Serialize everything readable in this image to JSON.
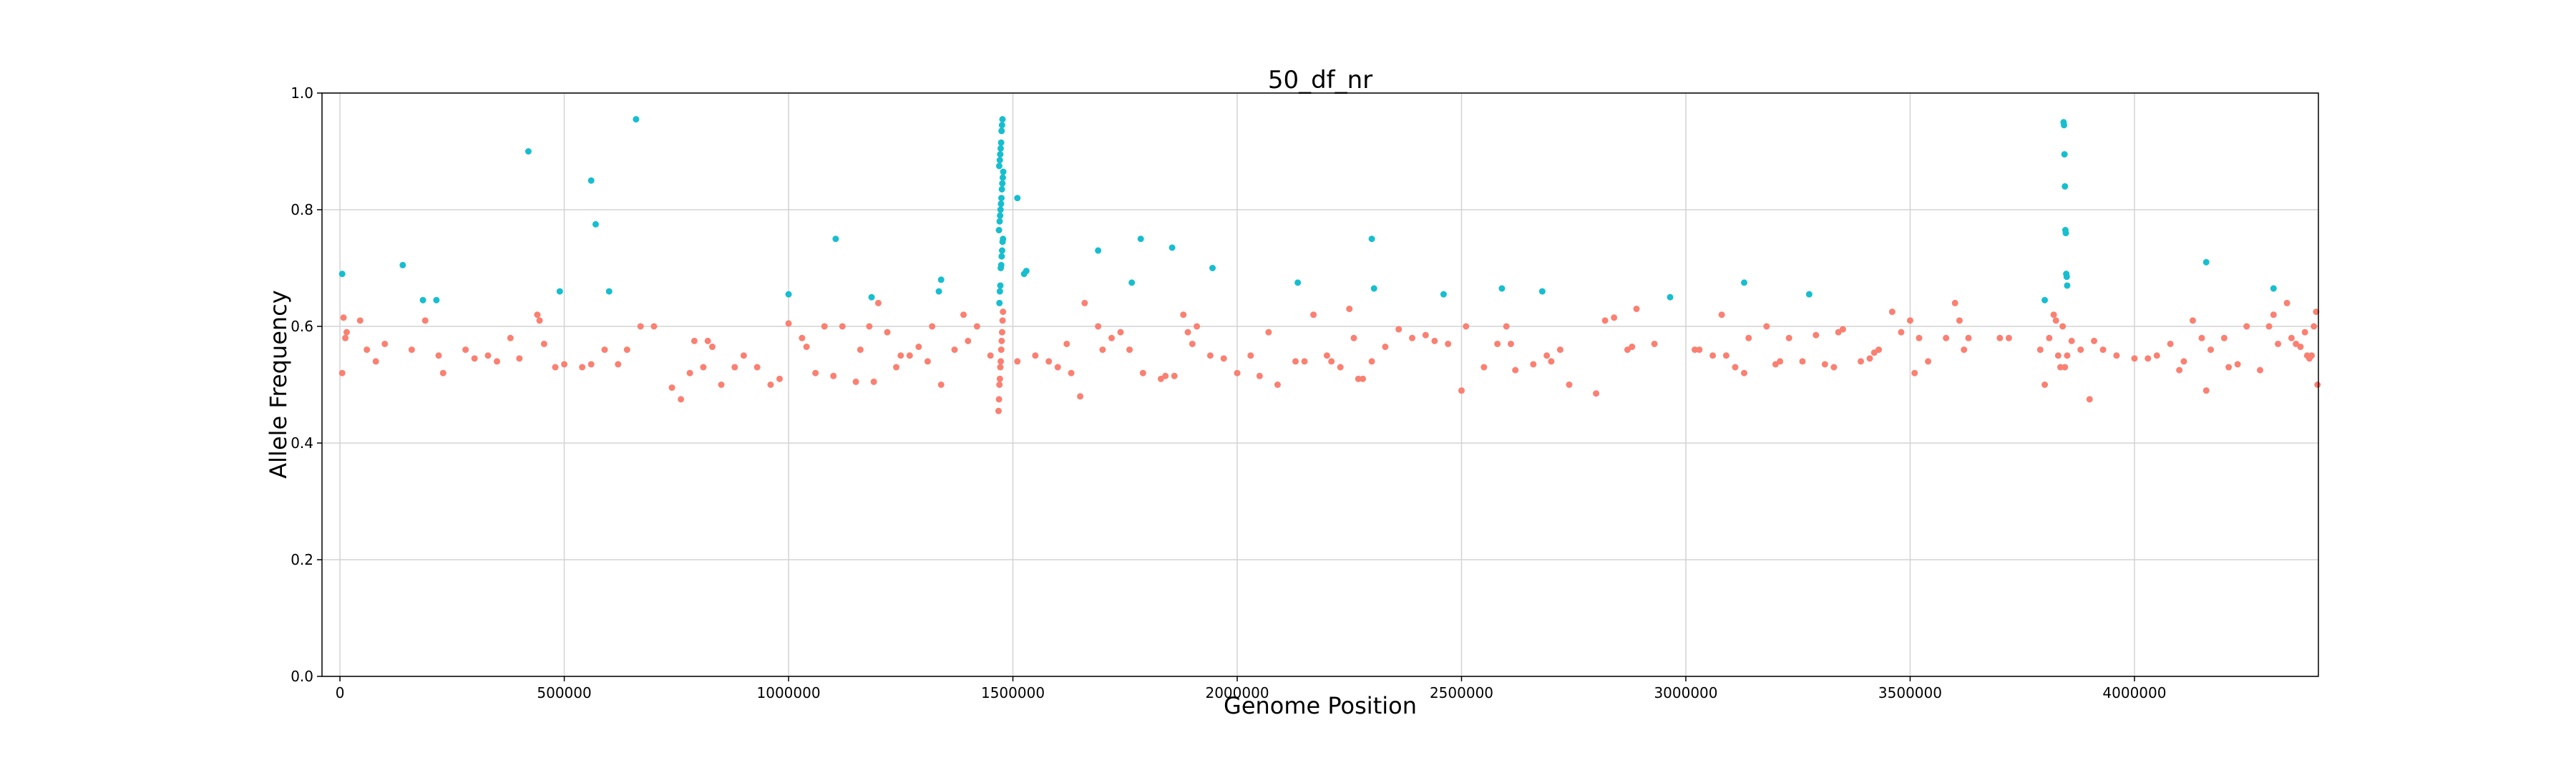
{
  "chart_data": {
    "type": "scatter",
    "title": "50_df_nr",
    "xlabel": "Genome Position",
    "ylabel": "Allele Frequency",
    "xlim": [
      -40000,
      4410000
    ],
    "ylim": [
      0.0,
      1.0
    ],
    "xticks": [
      0,
      500000,
      1000000,
      1500000,
      2000000,
      2500000,
      3000000,
      3500000,
      4000000
    ],
    "yticks": [
      0.0,
      0.2,
      0.4,
      0.6,
      0.8,
      1.0
    ],
    "grid": true,
    "legend": "none",
    "series": [
      {
        "color": "#fa8072",
        "points": [
          [
            5000,
            0.52
          ],
          [
            8000,
            0.615
          ],
          [
            12000,
            0.58
          ],
          [
            15000,
            0.59
          ],
          [
            45000,
            0.61
          ],
          [
            60000,
            0.56
          ],
          [
            80000,
            0.54
          ],
          [
            100000,
            0.57
          ],
          [
            160000,
            0.56
          ],
          [
            190000,
            0.61
          ],
          [
            220000,
            0.55
          ],
          [
            230000,
            0.52
          ],
          [
            280000,
            0.56
          ],
          [
            300000,
            0.545
          ],
          [
            330000,
            0.55
          ],
          [
            350000,
            0.54
          ],
          [
            380000,
            0.58
          ],
          [
            400000,
            0.545
          ],
          [
            440000,
            0.62
          ],
          [
            445000,
            0.61
          ],
          [
            455000,
            0.57
          ],
          [
            480000,
            0.53
          ],
          [
            500000,
            0.535
          ],
          [
            540000,
            0.53
          ],
          [
            560000,
            0.535
          ],
          [
            590000,
            0.56
          ],
          [
            620000,
            0.535
          ],
          [
            640000,
            0.56
          ],
          [
            670000,
            0.6
          ],
          [
            700000,
            0.6
          ],
          [
            740000,
            0.495
          ],
          [
            760000,
            0.475
          ],
          [
            780000,
            0.52
          ],
          [
            790000,
            0.575
          ],
          [
            810000,
            0.53
          ],
          [
            820000,
            0.575
          ],
          [
            830000,
            0.565
          ],
          [
            850000,
            0.5
          ],
          [
            880000,
            0.53
          ],
          [
            900000,
            0.55
          ],
          [
            930000,
            0.53
          ],
          [
            960000,
            0.5
          ],
          [
            980000,
            0.51
          ],
          [
            1000000,
            0.605
          ],
          [
            1030000,
            0.58
          ],
          [
            1040000,
            0.565
          ],
          [
            1060000,
            0.52
          ],
          [
            1080000,
            0.6
          ],
          [
            1100000,
            0.515
          ],
          [
            1120000,
            0.6
          ],
          [
            1150000,
            0.505
          ],
          [
            1160000,
            0.56
          ],
          [
            1180000,
            0.6
          ],
          [
            1190000,
            0.505
          ],
          [
            1200000,
            0.64
          ],
          [
            1220000,
            0.59
          ],
          [
            1240000,
            0.53
          ],
          [
            1250000,
            0.55
          ],
          [
            1270000,
            0.55
          ],
          [
            1290000,
            0.565
          ],
          [
            1310000,
            0.54
          ],
          [
            1320000,
            0.6
          ],
          [
            1340000,
            0.5
          ],
          [
            1370000,
            0.56
          ],
          [
            1390000,
            0.62
          ],
          [
            1400000,
            0.575
          ],
          [
            1420000,
            0.6
          ],
          [
            1450000,
            0.55
          ],
          [
            1468000,
            0.455
          ],
          [
            1469000,
            0.475
          ],
          [
            1470000,
            0.5
          ],
          [
            1471000,
            0.51
          ],
          [
            1472000,
            0.53
          ],
          [
            1473000,
            0.54
          ],
          [
            1474000,
            0.56
          ],
          [
            1475000,
            0.575
          ],
          [
            1476000,
            0.59
          ],
          [
            1477000,
            0.61
          ],
          [
            1478000,
            0.625
          ],
          [
            1510000,
            0.54
          ],
          [
            1550000,
            0.55
          ],
          [
            1580000,
            0.54
          ],
          [
            1600000,
            0.53
          ],
          [
            1620000,
            0.57
          ],
          [
            1630000,
            0.52
          ],
          [
            1650000,
            0.48
          ],
          [
            1660000,
            0.64
          ],
          [
            1690000,
            0.6
          ],
          [
            1700000,
            0.56
          ],
          [
            1720000,
            0.58
          ],
          [
            1740000,
            0.59
          ],
          [
            1760000,
            0.56
          ],
          [
            1790000,
            0.52
          ],
          [
            1830000,
            0.51
          ],
          [
            1840000,
            0.515
          ],
          [
            1860000,
            0.515
          ],
          [
            1880000,
            0.62
          ],
          [
            1890000,
            0.59
          ],
          [
            1900000,
            0.57
          ],
          [
            1910000,
            0.6
          ],
          [
            1940000,
            0.55
          ],
          [
            1970000,
            0.545
          ],
          [
            2000000,
            0.52
          ],
          [
            2030000,
            0.55
          ],
          [
            2050000,
            0.515
          ],
          [
            2070000,
            0.59
          ],
          [
            2090000,
            0.5
          ],
          [
            2130000,
            0.54
          ],
          [
            2150000,
            0.54
          ],
          [
            2170000,
            0.62
          ],
          [
            2200000,
            0.55
          ],
          [
            2210000,
            0.54
          ],
          [
            2230000,
            0.53
          ],
          [
            2250000,
            0.63
          ],
          [
            2260000,
            0.58
          ],
          [
            2270000,
            0.51
          ],
          [
            2280000,
            0.51
          ],
          [
            2300000,
            0.54
          ],
          [
            2330000,
            0.565
          ],
          [
            2360000,
            0.595
          ],
          [
            2390000,
            0.58
          ],
          [
            2420000,
            0.585
          ],
          [
            2440000,
            0.575
          ],
          [
            2470000,
            0.57
          ],
          [
            2500000,
            0.49
          ],
          [
            2510000,
            0.6
          ],
          [
            2550000,
            0.53
          ],
          [
            2580000,
            0.57
          ],
          [
            2600000,
            0.6
          ],
          [
            2610000,
            0.57
          ],
          [
            2620000,
            0.525
          ],
          [
            2660000,
            0.535
          ],
          [
            2690000,
            0.55
          ],
          [
            2700000,
            0.54
          ],
          [
            2720000,
            0.56
          ],
          [
            2740000,
            0.5
          ],
          [
            2800000,
            0.485
          ],
          [
            2820000,
            0.61
          ],
          [
            2840000,
            0.615
          ],
          [
            2870000,
            0.56
          ],
          [
            2880000,
            0.565
          ],
          [
            2890000,
            0.63
          ],
          [
            2930000,
            0.57
          ],
          [
            3020000,
            0.56
          ],
          [
            3030000,
            0.56
          ],
          [
            3060000,
            0.55
          ],
          [
            3080000,
            0.62
          ],
          [
            3090000,
            0.55
          ],
          [
            3110000,
            0.53
          ],
          [
            3130000,
            0.52
          ],
          [
            3140000,
            0.58
          ],
          [
            3180000,
            0.6
          ],
          [
            3200000,
            0.535
          ],
          [
            3210000,
            0.54
          ],
          [
            3230000,
            0.58
          ],
          [
            3260000,
            0.54
          ],
          [
            3290000,
            0.585
          ],
          [
            3310000,
            0.535
          ],
          [
            3330000,
            0.53
          ],
          [
            3340000,
            0.59
          ],
          [
            3350000,
            0.595
          ],
          [
            3390000,
            0.54
          ],
          [
            3410000,
            0.545
          ],
          [
            3420000,
            0.555
          ],
          [
            3430000,
            0.56
          ],
          [
            3460000,
            0.625
          ],
          [
            3480000,
            0.59
          ],
          [
            3500000,
            0.61
          ],
          [
            3510000,
            0.52
          ],
          [
            3520000,
            0.58
          ],
          [
            3540000,
            0.54
          ],
          [
            3580000,
            0.58
          ],
          [
            3600000,
            0.64
          ],
          [
            3610000,
            0.61
          ],
          [
            3620000,
            0.56
          ],
          [
            3630000,
            0.58
          ],
          [
            3700000,
            0.58
          ],
          [
            3720000,
            0.58
          ],
          [
            3790000,
            0.56
          ],
          [
            3800000,
            0.5
          ],
          [
            3810000,
            0.58
          ],
          [
            3820000,
            0.62
          ],
          [
            3825000,
            0.61
          ],
          [
            3830000,
            0.55
          ],
          [
            3835000,
            0.53
          ],
          [
            3840000,
            0.6
          ],
          [
            3845000,
            0.53
          ],
          [
            3850000,
            0.55
          ],
          [
            3860000,
            0.575
          ],
          [
            3880000,
            0.56
          ],
          [
            3900000,
            0.475
          ],
          [
            3910000,
            0.575
          ],
          [
            3930000,
            0.56
          ],
          [
            3960000,
            0.55
          ],
          [
            4000000,
            0.545
          ],
          [
            4030000,
            0.545
          ],
          [
            4050000,
            0.55
          ],
          [
            4080000,
            0.57
          ],
          [
            4100000,
            0.525
          ],
          [
            4110000,
            0.54
          ],
          [
            4130000,
            0.61
          ],
          [
            4150000,
            0.58
          ],
          [
            4160000,
            0.49
          ],
          [
            4170000,
            0.56
          ],
          [
            4200000,
            0.58
          ],
          [
            4210000,
            0.53
          ],
          [
            4230000,
            0.535
          ],
          [
            4250000,
            0.6
          ],
          [
            4280000,
            0.525
          ],
          [
            4300000,
            0.6
          ],
          [
            4310000,
            0.62
          ],
          [
            4320000,
            0.57
          ],
          [
            4340000,
            0.64
          ],
          [
            4350000,
            0.58
          ],
          [
            4360000,
            0.57
          ],
          [
            4370000,
            0.565
          ],
          [
            4380000,
            0.59
          ],
          [
            4385000,
            0.55
          ],
          [
            4390000,
            0.545
          ],
          [
            4395000,
            0.55
          ],
          [
            4400000,
            0.6
          ],
          [
            4405000,
            0.625
          ],
          [
            4408000,
            0.5
          ]
        ]
      },
      {
        "color": "#17becf",
        "points": [
          [
            5000,
            0.69
          ],
          [
            140000,
            0.705
          ],
          [
            185000,
            0.645
          ],
          [
            215000,
            0.645
          ],
          [
            420000,
            0.9
          ],
          [
            490000,
            0.66
          ],
          [
            560000,
            0.85
          ],
          [
            570000,
            0.775
          ],
          [
            600000,
            0.66
          ],
          [
            660000,
            0.955
          ],
          [
            1000000,
            0.655
          ],
          [
            1105000,
            0.75
          ],
          [
            1185000,
            0.65
          ],
          [
            1335000,
            0.66
          ],
          [
            1340000,
            0.68
          ],
          [
            1470000,
            0.64
          ],
          [
            1471000,
            0.66
          ],
          [
            1472000,
            0.67
          ],
          [
            1473000,
            0.7
          ],
          [
            1474000,
            0.705
          ],
          [
            1475000,
            0.72
          ],
          [
            1476000,
            0.73
          ],
          [
            1477000,
            0.745
          ],
          [
            1478000,
            0.75
          ],
          [
            1469000,
            0.765
          ],
          [
            1470500,
            0.78
          ],
          [
            1471500,
            0.79
          ],
          [
            1472500,
            0.8
          ],
          [
            1473500,
            0.81
          ],
          [
            1474500,
            0.82
          ],
          [
            1475500,
            0.835
          ],
          [
            1476500,
            0.845
          ],
          [
            1477500,
            0.855
          ],
          [
            1478500,
            0.865
          ],
          [
            1469500,
            0.875
          ],
          [
            1470800,
            0.885
          ],
          [
            1471800,
            0.895
          ],
          [
            1472800,
            0.905
          ],
          [
            1473800,
            0.915
          ],
          [
            1474800,
            0.935
          ],
          [
            1475800,
            0.945
          ],
          [
            1476800,
            0.955
          ],
          [
            1510000,
            0.82
          ],
          [
            1525000,
            0.69
          ],
          [
            1530000,
            0.695
          ],
          [
            1690000,
            0.73
          ],
          [
            1765000,
            0.675
          ],
          [
            1785000,
            0.75
          ],
          [
            1855000,
            0.735
          ],
          [
            1945000,
            0.7
          ],
          [
            2135000,
            0.675
          ],
          [
            2300000,
            0.75
          ],
          [
            2305000,
            0.665
          ],
          [
            2460000,
            0.655
          ],
          [
            2590000,
            0.665
          ],
          [
            2680000,
            0.66
          ],
          [
            2965000,
            0.65
          ],
          [
            3130000,
            0.675
          ],
          [
            3275000,
            0.655
          ],
          [
            3800000,
            0.645
          ],
          [
            3842000,
            0.95
          ],
          [
            3843000,
            0.945
          ],
          [
            3844000,
            0.895
          ],
          [
            3845000,
            0.84
          ],
          [
            3846000,
            0.765
          ],
          [
            3847000,
            0.76
          ],
          [
            3848000,
            0.69
          ],
          [
            3849000,
            0.685
          ],
          [
            3850000,
            0.67
          ],
          [
            4160000,
            0.71
          ],
          [
            4310000,
            0.665
          ]
        ]
      }
    ]
  }
}
